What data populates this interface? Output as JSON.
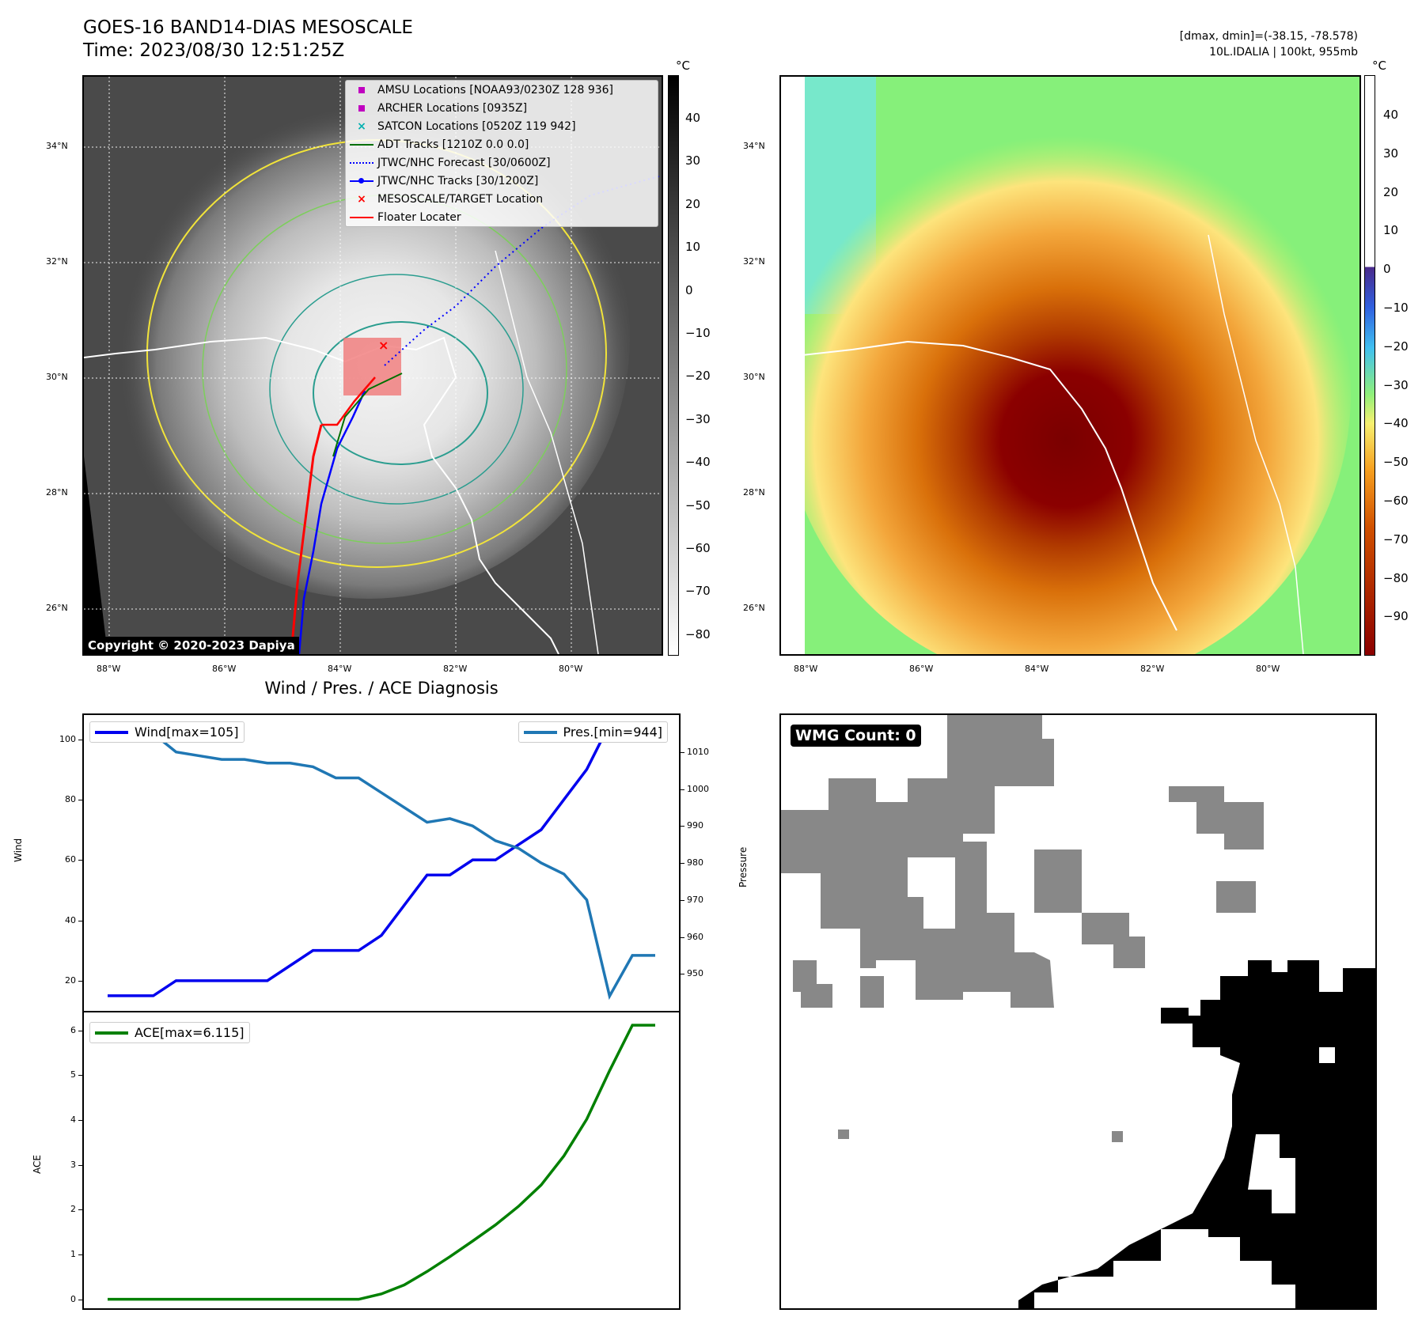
{
  "header": {
    "title_line1": "GOES-16 BAND14-DIAS MESOSCALE",
    "title_line2": "Time: 2023/08/30 12:51:25Z",
    "dmax_dmin": "[dmax, dmin]=(-38.15, -78.578)",
    "storm_info": "10L.IDALIA | 100kt, 955mb"
  },
  "map_axes": {
    "lat_labels": [
      "34°N",
      "32°N",
      "30°N",
      "28°N",
      "26°N"
    ],
    "lon_labels": [
      "88°W",
      "86°W",
      "84°W",
      "82°W",
      "80°W"
    ]
  },
  "ir_panel": {
    "colorbar_unit": "°C",
    "colorbar_ticks": [
      "40",
      "30",
      "20",
      "10",
      "0",
      "−10",
      "−20",
      "−30",
      "−40",
      "−50",
      "−60",
      "−70",
      "−80"
    ],
    "copyright": "Copyright © 2020-2023 Dapiya",
    "legend": [
      {
        "label": "AMSU Locations [NOAA93/0230Z 128 936]",
        "marker": "square",
        "color": "#c000c0"
      },
      {
        "label": "ARCHER Locations [0935Z]",
        "marker": "square",
        "color": "#c000c0"
      },
      {
        "label": "SATCON Locations [0520Z 119 942]",
        "marker": "x",
        "color": "#00b0b0"
      },
      {
        "label": "ADT Tracks [1210Z 0.0 0.0]",
        "marker": "line",
        "color": "#007000"
      },
      {
        "label": "JTWC/NHC Forecast [30/0600Z]",
        "marker": "dotted",
        "color": "#0000ff"
      },
      {
        "label": "JTWC/NHC Tracks [30/1200Z]",
        "marker": "line-dot",
        "color": "#0000ff"
      },
      {
        "label": "MESOSCALE/TARGET Location",
        "marker": "x",
        "color": "#ff0000"
      },
      {
        "label": "Floater Locater",
        "marker": "line",
        "color": "#ff0000"
      }
    ]
  },
  "enhanced_panel": {
    "colorbar_unit": "°C",
    "colorbar_ticks": [
      "40",
      "30",
      "20",
      "10",
      "0",
      "−10",
      "−20",
      "−30",
      "−40",
      "−50",
      "−60",
      "−70",
      "−80",
      "−90"
    ]
  },
  "wmg_panel": {
    "badge": "WMG Count: 0"
  },
  "chart_data": [
    {
      "type": "line",
      "title": "Wind / Pres. / ACE Diagnosis",
      "ylabel": "Wind",
      "y2label": "Pressure",
      "ylim": [
        10,
        108
      ],
      "y2lim": [
        940,
        1020
      ],
      "yticks": [
        20,
        40,
        60,
        80,
        100
      ],
      "y2ticks": [
        950,
        960,
        970,
        980,
        990,
        1000,
        1010
      ],
      "x": [
        0,
        1,
        2,
        3,
        4,
        5,
        6,
        7,
        8,
        9,
        10,
        11,
        12,
        13,
        14,
        15,
        16,
        17,
        18,
        19,
        20,
        21,
        22,
        23,
        24
      ],
      "series": [
        {
          "name": "Wind[max=105]",
          "axis": "left",
          "color": "#0000ee",
          "values": [
            15,
            15,
            15,
            20,
            20,
            20,
            20,
            20,
            25,
            30,
            30,
            30,
            35,
            45,
            55,
            55,
            60,
            60,
            65,
            70,
            80,
            90,
            105,
            100,
            100
          ]
        },
        {
          "name": "Pres.[min=944]",
          "axis": "right",
          "color": "#1f77b4",
          "values": [
            1015,
            1015,
            1015,
            1010,
            1009,
            1008,
            1008,
            1007,
            1007,
            1006,
            1003,
            1003,
            999,
            995,
            991,
            992,
            990,
            986,
            984,
            980,
            977,
            970,
            944,
            955,
            955
          ]
        }
      ]
    },
    {
      "type": "line",
      "ylabel": "ACE",
      "ylim": [
        -0.2,
        6.4
      ],
      "yticks": [
        0,
        1,
        2,
        3,
        4,
        5,
        6
      ],
      "x": [
        0,
        1,
        2,
        3,
        4,
        5,
        6,
        7,
        8,
        9,
        10,
        11,
        12,
        13,
        14,
        15,
        16,
        17,
        18,
        19,
        20,
        21,
        22,
        23,
        24
      ],
      "series": [
        {
          "name": "ACE[max=6.115]",
          "color": "#008000",
          "values": [
            0,
            0,
            0,
            0,
            0,
            0,
            0,
            0,
            0,
            0,
            0,
            0,
            0.12,
            0.32,
            0.62,
            0.95,
            1.3,
            1.66,
            2.07,
            2.55,
            3.2,
            4.02,
            5.1,
            6.115,
            6.115
          ]
        }
      ]
    }
  ]
}
